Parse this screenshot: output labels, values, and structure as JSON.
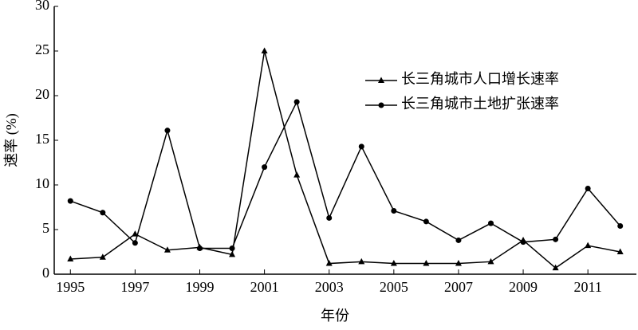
{
  "chart_data": {
    "type": "line",
    "x_label": "年份",
    "y_label": "速率 (%)",
    "x": [
      1995,
      1996,
      1997,
      1998,
      1999,
      2000,
      2001,
      2002,
      2003,
      2004,
      2005,
      2006,
      2007,
      2008,
      2009,
      2010,
      2011,
      2012
    ],
    "series": [
      {
        "name": "长三角城市人口增长速率",
        "color": "#000000",
        "marker": "triangle",
        "values": [
          1.7,
          1.9,
          4.5,
          2.7,
          3.0,
          2.2,
          25.0,
          11.1,
          1.2,
          1.4,
          1.2,
          1.2,
          1.2,
          1.4,
          3.8,
          0.7,
          3.2,
          2.5
        ]
      },
      {
        "name": "长三角城市土地扩张速率",
        "color": "#000000",
        "marker": "circle",
        "values": [
          8.2,
          6.9,
          3.5,
          16.1,
          2.9,
          2.9,
          12.0,
          19.3,
          6.3,
          14.3,
          7.1,
          5.9,
          3.8,
          5.7,
          3.6,
          3.9,
          9.6,
          5.4
        ]
      }
    ],
    "xlim": [
      1994.5,
      2012.5
    ],
    "xticks": [
      1995,
      1997,
      1999,
      2001,
      2003,
      2005,
      2007,
      2009,
      2011
    ],
    "ylim": [
      0,
      30
    ],
    "yticks": [
      0,
      5,
      10,
      15,
      20,
      25,
      30
    ],
    "grid": false,
    "legend": "upper right"
  }
}
